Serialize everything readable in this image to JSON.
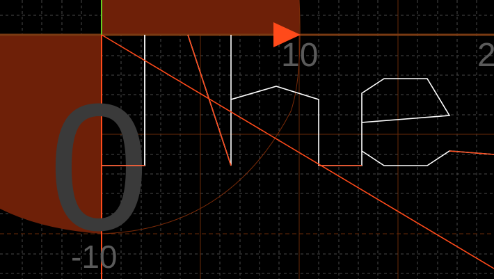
{
  "canvas": {
    "background": "#000000",
    "grid_color_dashed": "#5a5a5a",
    "grid_color_orange": "#6a2a08",
    "axis_color": "#7a3a12",
    "accent_red": "#ff4a1a",
    "path_white": "#ffffff",
    "y_axis_green": "#66cc22"
  },
  "labels": {
    "big_value": "0",
    "tick_10": "10",
    "tick_2": "2",
    "tick_neg10": "-10"
  },
  "icons": {
    "arrow": "play-triangle-icon"
  }
}
